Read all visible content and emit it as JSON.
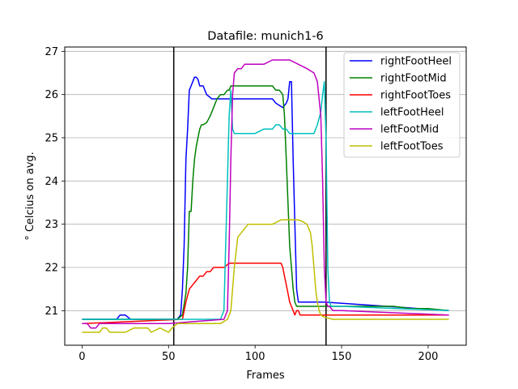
{
  "chart_data": {
    "type": "line",
    "title": "Datafile: munich1-6",
    "xlabel": "Frames",
    "ylabel": "° Celcius on avg.",
    "xlim": [
      -10,
      222
    ],
    "ylim": [
      20.2,
      27.1
    ],
    "xticks": [
      0,
      50,
      100,
      150,
      200
    ],
    "yticks": [
      21,
      22,
      23,
      24,
      25,
      26,
      27
    ],
    "grid": "horizontal",
    "legend": "top-right",
    "vlines": [
      53,
      141
    ],
    "series": [
      {
        "name": "rightFootHeel",
        "color": "#0000ff",
        "x": [
          0,
          20,
          22,
          25,
          28,
          50,
          55,
          57,
          58,
          59,
          60,
          61,
          62,
          63,
          64,
          65,
          66,
          67,
          68,
          70,
          72,
          75,
          80,
          85,
          110,
          112,
          116,
          118,
          119,
          120,
          121,
          122,
          123,
          124,
          125,
          130,
          140,
          212
        ],
        "y": [
          20.8,
          20.8,
          20.9,
          20.9,
          20.8,
          20.8,
          20.8,
          20.9,
          21.5,
          22.5,
          24.5,
          25.2,
          26.1,
          26.2,
          26.3,
          26.4,
          26.4,
          26.35,
          26.2,
          26.2,
          26.0,
          25.9,
          25.9,
          25.9,
          25.9,
          25.8,
          25.7,
          25.8,
          25.9,
          26.3,
          26.3,
          24.5,
          23.0,
          21.5,
          21.2,
          21.2,
          21.2,
          21.0
        ]
      },
      {
        "name": "rightFootMid",
        "color": "#008000",
        "x": [
          0,
          55,
          58,
          60,
          61,
          62,
          63,
          64,
          65,
          66,
          67,
          68,
          69,
          70,
          72,
          74,
          76,
          78,
          80,
          82,
          84,
          85,
          86,
          88,
          110,
          112,
          114,
          116,
          117,
          118,
          119,
          120,
          121,
          122,
          123,
          124,
          125,
          126,
          130,
          140,
          150,
          160,
          170,
          180,
          190,
          200,
          212
        ],
        "y": [
          20.8,
          20.8,
          20.9,
          21.4,
          22.0,
          23.3,
          23.3,
          24.0,
          24.5,
          24.8,
          25.0,
          25.2,
          25.3,
          25.3,
          25.35,
          25.5,
          25.7,
          25.9,
          26.0,
          26.0,
          26.1,
          26.1,
          26.2,
          26.2,
          26.2,
          26.1,
          26.1,
          26.0,
          25.5,
          24.5,
          23.5,
          22.5,
          22.0,
          21.5,
          21.2,
          21.1,
          21.1,
          21.1,
          21.1,
          21.1,
          21.1,
          21.1,
          21.1,
          21.1,
          21.05,
          21.05,
          21.0
        ]
      },
      {
        "name": "rightFootToes",
        "color": "#ff0000",
        "x": [
          0,
          58,
          60,
          62,
          64,
          66,
          68,
          70,
          72,
          74,
          76,
          78,
          80,
          82,
          85,
          115,
          116,
          117,
          118,
          119,
          120,
          121,
          122,
          123,
          124,
          125,
          126,
          128,
          135,
          140,
          212
        ],
        "y": [
          20.7,
          20.8,
          21.2,
          21.5,
          21.6,
          21.7,
          21.8,
          21.8,
          21.9,
          21.9,
          22.0,
          22.0,
          22.0,
          22.0,
          22.1,
          22.1,
          22.0,
          21.8,
          21.6,
          21.4,
          21.2,
          21.1,
          21.0,
          20.9,
          21.0,
          21.0,
          20.9,
          20.9,
          20.9,
          20.9,
          20.9
        ]
      },
      {
        "name": "leftFootHeel",
        "color": "#00bfbf",
        "x": [
          0,
          80,
          82,
          83,
          84,
          85,
          86,
          87,
          88,
          90,
          92,
          100,
          105,
          110,
          112,
          114,
          116,
          118,
          120,
          124,
          130,
          134,
          136,
          138,
          139,
          140,
          141,
          142,
          143,
          144,
          145,
          150,
          212
        ],
        "y": [
          20.8,
          20.8,
          21.0,
          22.5,
          24.0,
          25.5,
          26.1,
          25.2,
          25.1,
          25.1,
          25.1,
          25.1,
          25.2,
          25.2,
          25.3,
          25.3,
          25.2,
          25.2,
          25.1,
          25.1,
          25.1,
          25.1,
          25.3,
          25.6,
          26.0,
          26.3,
          25.0,
          22.0,
          21.2,
          21.1,
          21.1,
          21.1,
          21.0
        ]
      },
      {
        "name": "leftFootMid",
        "color": "#bf00bf",
        "x": [
          0,
          3,
          5,
          8,
          10,
          30,
          50,
          82,
          84,
          85,
          86,
          87,
          88,
          90,
          92,
          94,
          95,
          100,
          105,
          110,
          120,
          125,
          130,
          134,
          136,
          138,
          139,
          140,
          141,
          142,
          143,
          145,
          150,
          212
        ],
        "y": [
          20.7,
          20.7,
          20.6,
          20.6,
          20.7,
          20.7,
          20.7,
          20.8,
          21.0,
          22.5,
          24.5,
          26.0,
          26.5,
          26.6,
          26.6,
          26.7,
          26.7,
          26.7,
          26.7,
          26.8,
          26.8,
          26.7,
          26.6,
          26.5,
          26.3,
          25.5,
          24.0,
          22.0,
          21.2,
          21.1,
          21.1,
          21.0,
          21.0,
          20.9
        ]
      },
      {
        "name": "leftFootToes",
        "color": "#bfbf00",
        "x": [
          0,
          10,
          12,
          14,
          16,
          20,
          25,
          30,
          35,
          38,
          40,
          45,
          50,
          52,
          55,
          60,
          80,
          84,
          86,
          88,
          90,
          92,
          94,
          96,
          98,
          100,
          105,
          110,
          115,
          120,
          125,
          128,
          130,
          132,
          133,
          134,
          135,
          136,
          137,
          138,
          140,
          145,
          212
        ],
        "y": [
          20.5,
          20.5,
          20.6,
          20.6,
          20.5,
          20.5,
          20.5,
          20.6,
          20.6,
          20.6,
          20.5,
          20.6,
          20.5,
          20.6,
          20.7,
          20.7,
          20.7,
          20.8,
          21.0,
          22.0,
          22.7,
          22.8,
          22.9,
          23.0,
          23.0,
          23.0,
          23.0,
          23.0,
          23.1,
          23.1,
          23.1,
          23.05,
          23.0,
          22.8,
          22.5,
          22.0,
          21.5,
          21.2,
          21.0,
          20.9,
          20.85,
          20.8,
          20.8
        ]
      }
    ]
  }
}
